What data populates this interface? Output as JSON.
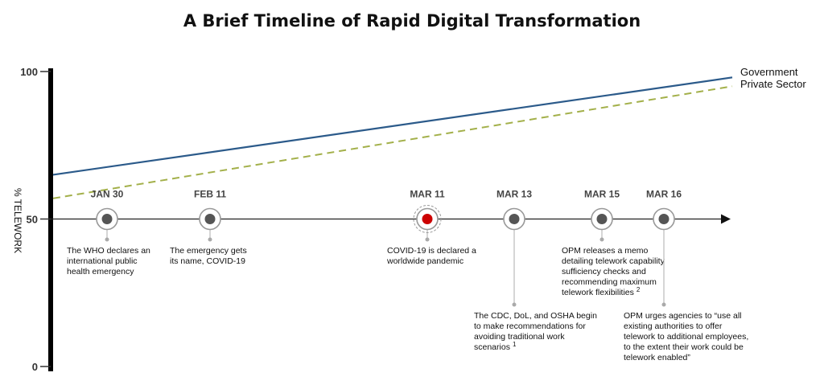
{
  "chart_data": {
    "type": "line",
    "title": "A Brief Timeline of Rapid Digital Transformation",
    "ylabel": "% TELEWORK",
    "ylim": [
      0,
      100
    ],
    "yticks": [
      "0",
      "50",
      "100"
    ],
    "grid": false,
    "legend_position": "right",
    "series": [
      {
        "name": "Government",
        "color": "#2b5a8a",
        "dashed": false,
        "values": [
          65,
          98
        ]
      },
      {
        "name": "Private Sector",
        "color": "#a3b04a",
        "dashed": true,
        "values": [
          57,
          95
        ]
      }
    ],
    "events": [
      {
        "date": "JAN 30",
        "day": 0,
        "highlight": false,
        "text": [
          "The WHO declares an",
          "international public",
          "health emergency"
        ],
        "tier": 1
      },
      {
        "date": "FEB 11",
        "day": 12,
        "highlight": false,
        "text": [
          "The emergency gets",
          "its name, COVID-19"
        ],
        "tier": 1
      },
      {
        "date": "MAR 11",
        "day": 41,
        "highlight": true,
        "text": [
          "COVID-19 is declared a",
          "worldwide pandemic"
        ],
        "tier": 1
      },
      {
        "date": "MAR 13",
        "day": 43,
        "highlight": false,
        "text": [
          "The CDC, DoL, and OSHA begin",
          "to make recommendations for",
          "avoiding traditional work",
          "scenarios"
        ],
        "note": "1",
        "tier": 2
      },
      {
        "date": "MAR 15",
        "day": 45,
        "highlight": false,
        "text": [
          "OPM releases a memo",
          "detailing telework capability",
          "sufficiency checks and",
          "recommending maximum",
          "telework flexibilities"
        ],
        "note": "2",
        "tier": 1
      },
      {
        "date": "MAR 16",
        "day": 46,
        "highlight": false,
        "text": [
          "OPM urges agencies to “use all",
          "existing authorities to offer",
          "telework to additional employees,",
          "to the extent their work could be",
          "telework enabled”"
        ],
        "tier": 2
      }
    ],
    "colors": {
      "marker_fill": "#555555",
      "marker_ring": "#999999",
      "highlight_fill": "#cc0000",
      "connector": "#bbbbbb",
      "axis": "#000000"
    }
  }
}
